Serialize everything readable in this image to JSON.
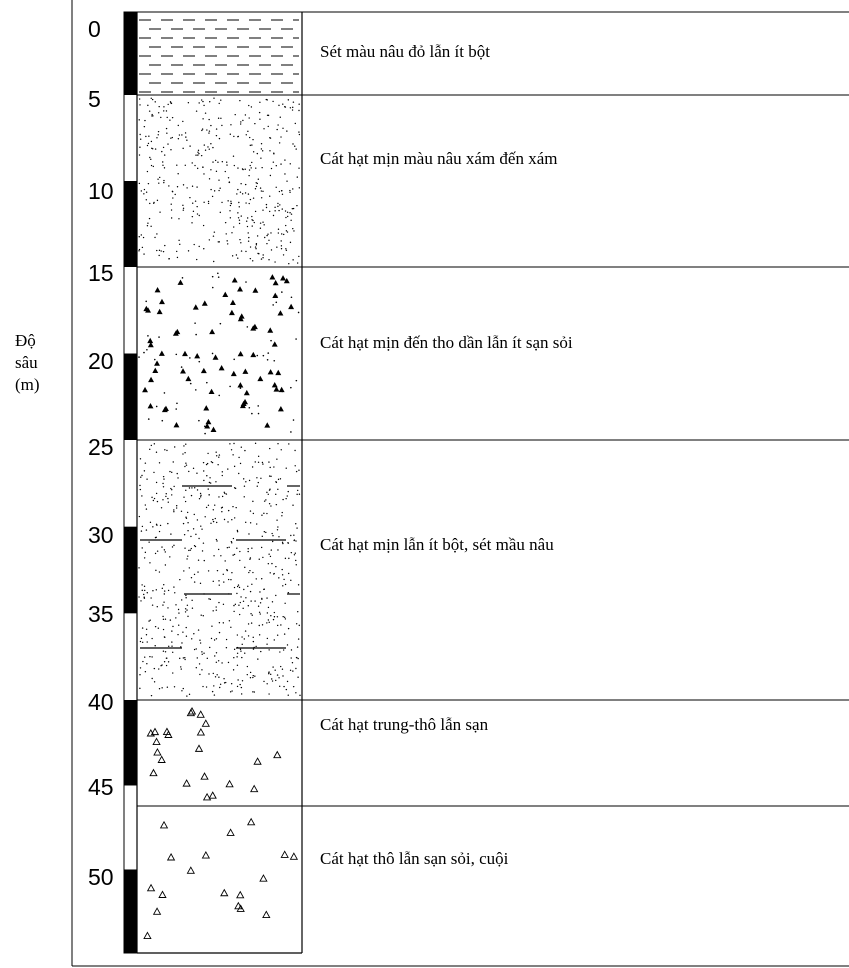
{
  "axis": {
    "label_lines": [
      "Độ",
      "sâu",
      "(m)"
    ],
    "ticks": [
      "0",
      "5",
      "10",
      "15",
      "20",
      "25",
      "30",
      "35",
      "40",
      "45",
      "50"
    ]
  },
  "layers": [
    {
      "top_m": 0,
      "bottom_m": 5,
      "pattern": "clay",
      "description": "Sét màu nâu đỏ lẫn ít bột"
    },
    {
      "top_m": 5,
      "bottom_m": 15,
      "pattern": "fine-sand",
      "description": "Cát hạt mịn màu nâu xám đến xám"
    },
    {
      "top_m": 15,
      "bottom_m": 25,
      "pattern": "sand-with-gravel",
      "description": "Cát hạt mịn đến tho dần lẫn ít sạn sỏi"
    },
    {
      "top_m": 25,
      "bottom_m": 40,
      "pattern": "silty-sand",
      "description": "Cát hạt mịn lẫn ít bột, sét mầu nâu"
    },
    {
      "top_m": 40,
      "bottom_m": 46.2,
      "pattern": "medium-sand-grit",
      "description": "Cát hạt trung-thô lẫn sạn"
    },
    {
      "top_m": 46.2,
      "bottom_m": 55,
      "pattern": "coarse-sand-pebble",
      "description": "Cát hạt thô lẫn sạn sỏi, cuội"
    }
  ],
  "colors": {
    "line": "#000000",
    "background": "#ffffff"
  }
}
